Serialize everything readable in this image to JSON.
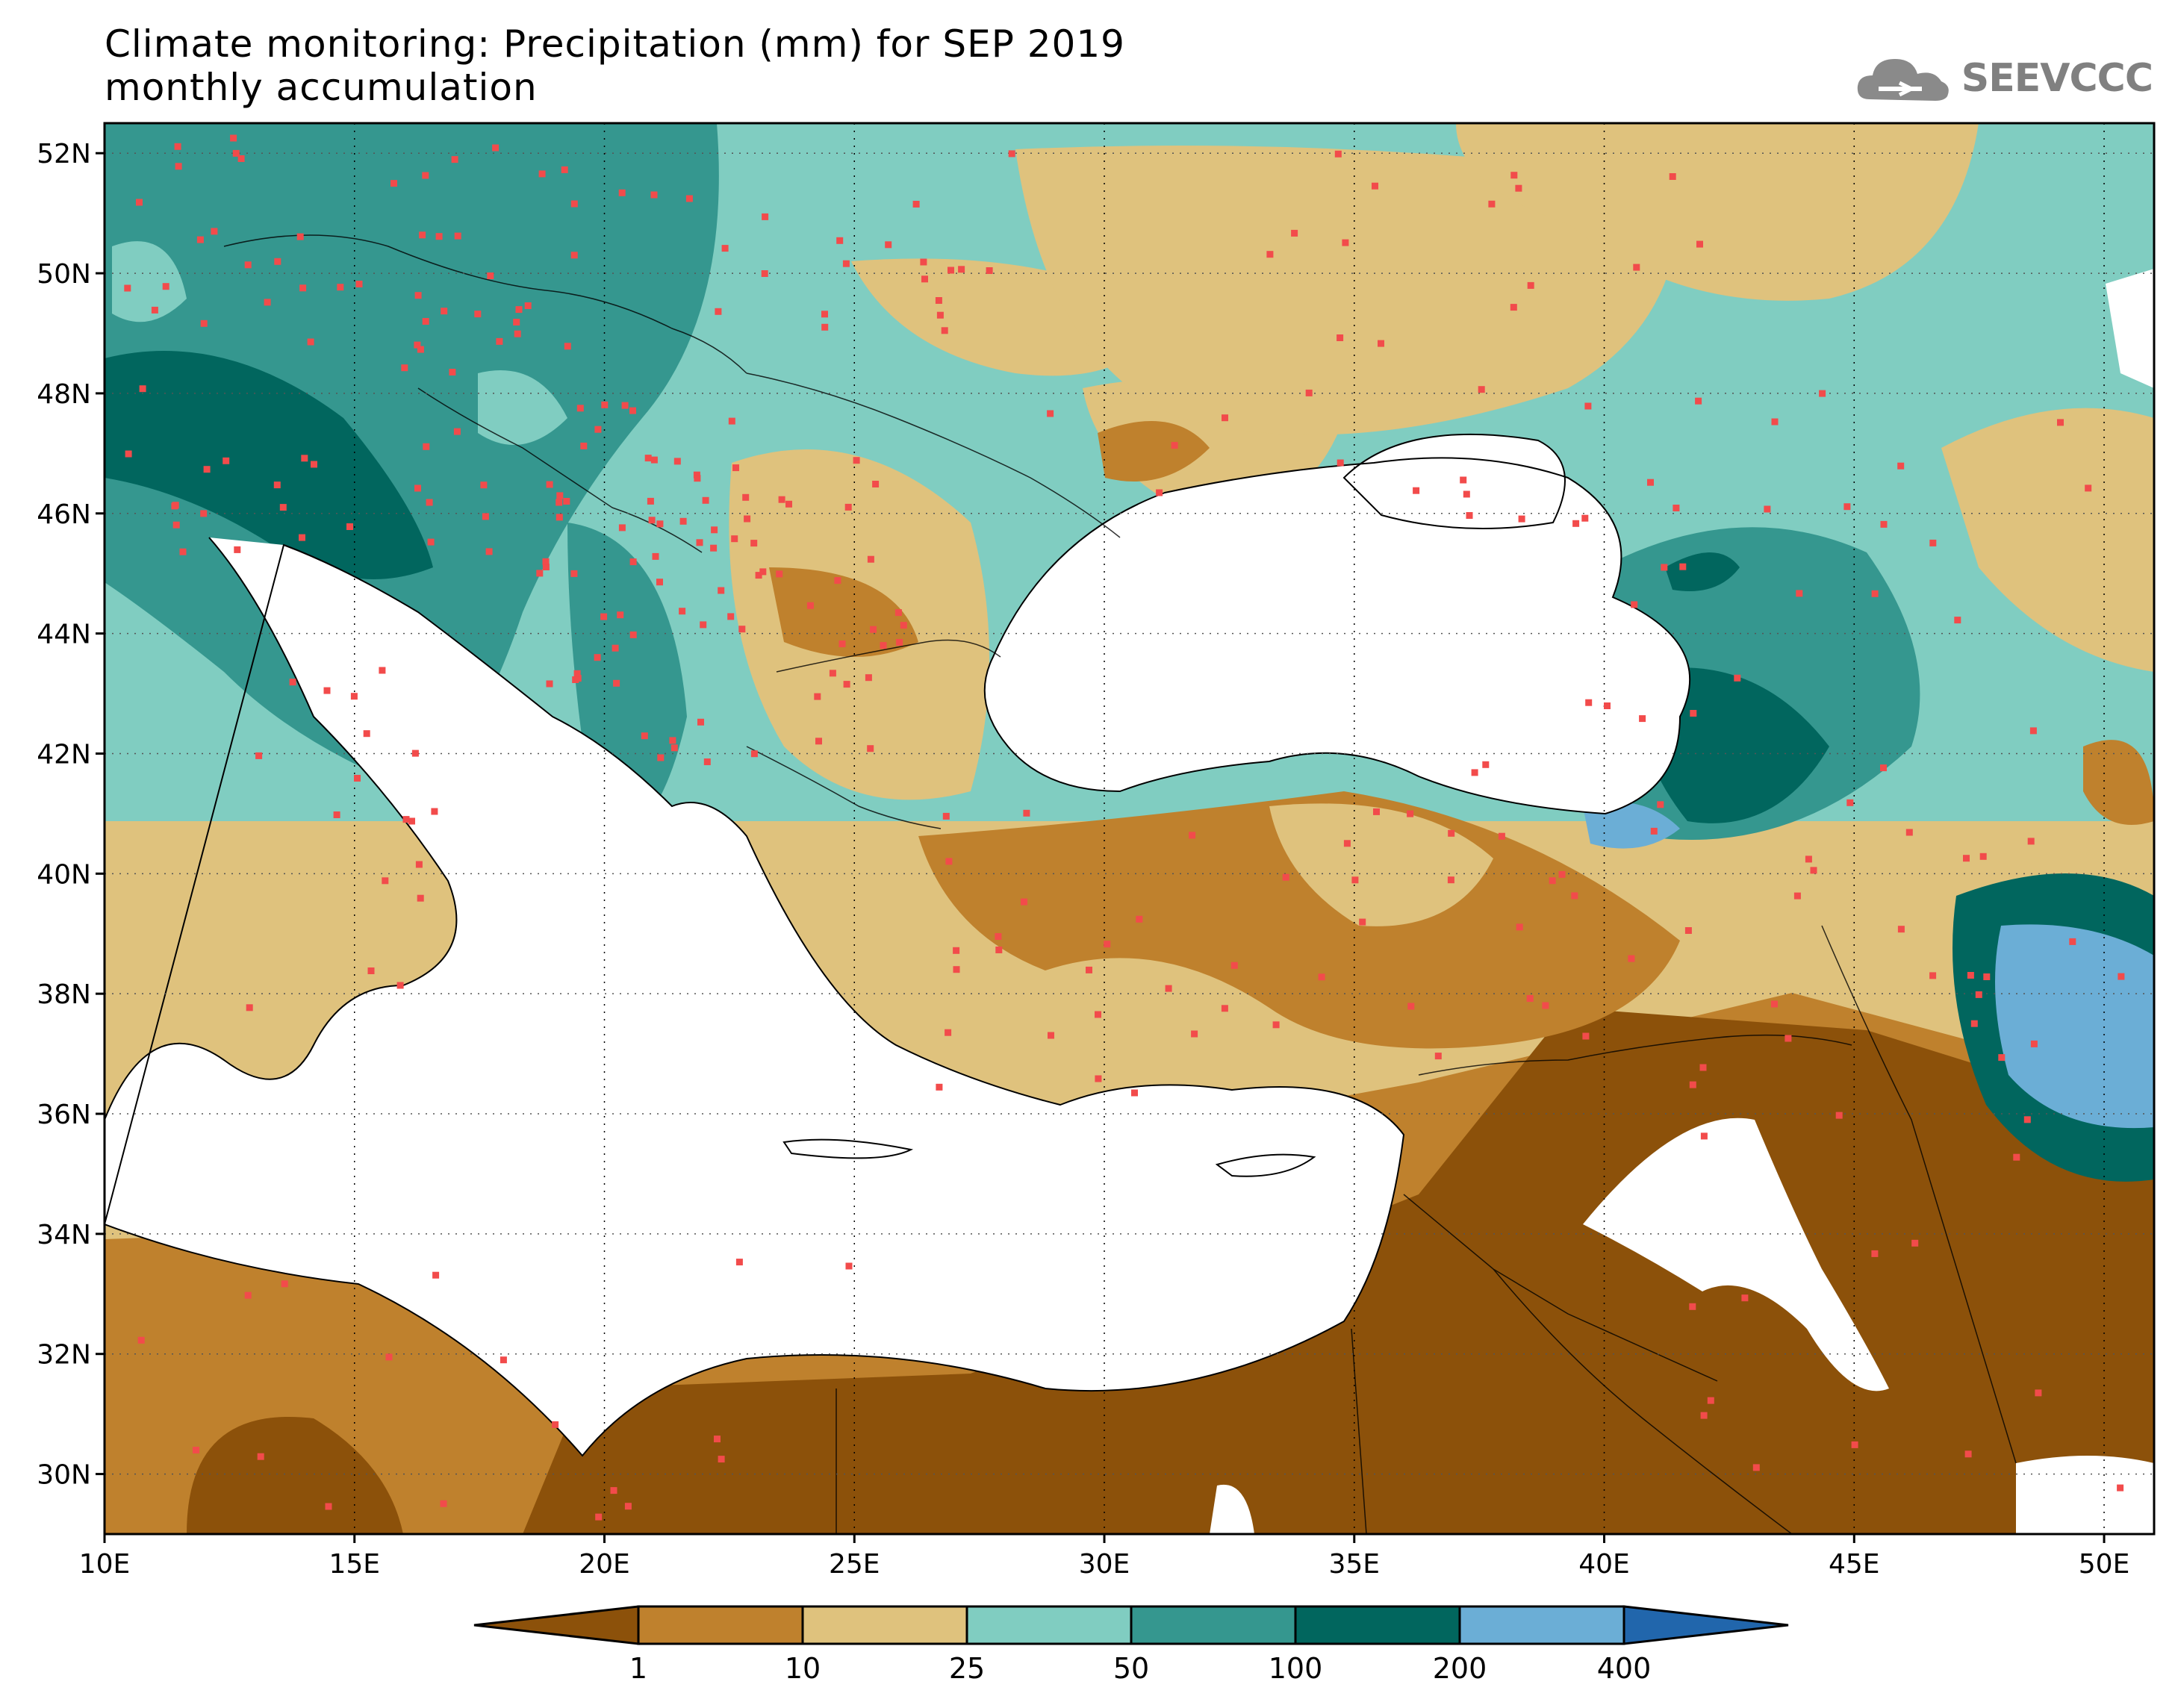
{
  "header": {
    "title_line1": "Climate monitoring: Precipitation (mm) for SEP 2019",
    "title_line2": "monthly accumulation",
    "logo_text": "SEEVCCC",
    "logo_icon": "cloud-icon"
  },
  "map": {
    "lat_range": [
      29,
      52.5
    ],
    "lon_range": [
      10,
      51
    ],
    "lat_ticks": [
      "52N",
      "50N",
      "48N",
      "46N",
      "44N",
      "42N",
      "40N",
      "38N",
      "36N",
      "34N",
      "32N",
      "30N"
    ],
    "lon_ticks": [
      "10E",
      "15E",
      "20E",
      "25E",
      "30E",
      "35E",
      "40E",
      "45E",
      "50E"
    ],
    "grid": "dotted",
    "station_color": "#f24b4b"
  },
  "colorbar": {
    "labels": [
      "1",
      "10",
      "25",
      "50",
      "100",
      "200",
      "400"
    ],
    "colors": [
      "#8c510a",
      "#bf812d",
      "#dfc27d",
      "#80cdc1",
      "#35978f",
      "#01665e",
      "#6baed6",
      "#2166ac"
    ]
  }
}
